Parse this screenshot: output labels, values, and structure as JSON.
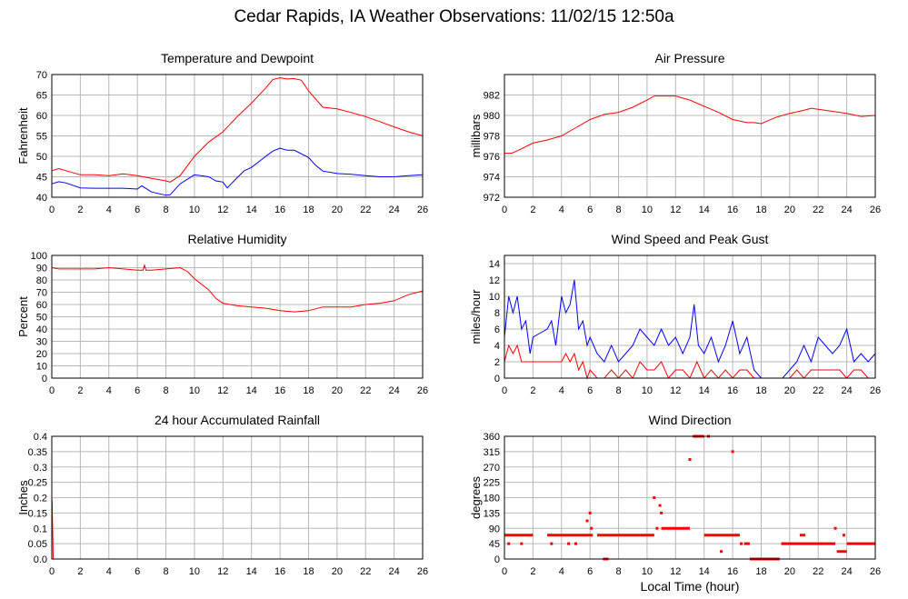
{
  "title": "Cedar Rapids, IA Weather Observations: 11/02/15 12:50a",
  "colors": {
    "red": "#ff0000",
    "blue": "#0000ff",
    "grid": "#b8b8b8"
  },
  "chart_data": [
    {
      "id": "temp",
      "type": "line",
      "title": "Temperature and Dewpoint",
      "ylabel": "Fahrenheit",
      "xlabel": "",
      "xlim": [
        0,
        26
      ],
      "ylim": [
        40,
        70
      ],
      "xticks": [
        0,
        2,
        4,
        6,
        8,
        10,
        12,
        14,
        16,
        18,
        20,
        22,
        24,
        26
      ],
      "yticks": [
        40,
        45,
        50,
        55,
        60,
        65,
        70
      ],
      "grid": true,
      "series": [
        {
          "color": "#ff0000",
          "x": [
            0,
            0.5,
            1,
            2,
            3,
            4,
            5,
            6,
            7,
            8,
            8.3,
            9,
            10,
            11,
            12,
            13,
            14,
            15,
            15.5,
            16,
            16.5,
            17,
            17.5,
            18,
            19,
            20,
            21,
            22,
            23,
            24,
            25,
            26
          ],
          "y": [
            46.5,
            47,
            46.5,
            45.5,
            45.5,
            45.3,
            45.7,
            45.3,
            44.6,
            44,
            43.7,
            45.3,
            50,
            53.5,
            56,
            59.7,
            63,
            66.7,
            68.8,
            69.2,
            68.9,
            69,
            68.6,
            66,
            62,
            61.6,
            60.7,
            59.7,
            58.5,
            57.2,
            56,
            55
          ]
        },
        {
          "color": "#0000ff",
          "x": [
            0,
            0.5,
            1,
            2,
            3,
            4,
            5,
            6,
            6.3,
            7,
            8,
            8.3,
            9,
            10,
            11,
            11.5,
            12,
            12.3,
            13,
            13.5,
            14,
            15,
            15.5,
            16,
            16.5,
            17,
            18,
            18.5,
            19,
            20,
            21,
            22,
            23,
            24,
            25,
            26
          ],
          "y": [
            43.3,
            43.8,
            43.5,
            42.3,
            42.2,
            42.2,
            42.2,
            42,
            42.8,
            41.3,
            40.5,
            40.6,
            43.3,
            45.5,
            45,
            44,
            43.7,
            42.3,
            44.8,
            46.5,
            47.3,
            50,
            51.3,
            52,
            51.5,
            51.5,
            49.7,
            47.8,
            46.4,
            45.8,
            45.6,
            45.3,
            45,
            45,
            45.3,
            45.5
          ]
        }
      ]
    },
    {
      "id": "pressure",
      "type": "line",
      "title": "Air Pressure",
      "ylabel": "millibars",
      "xlabel": "",
      "xlim": [
        0,
        26
      ],
      "ylim": [
        972,
        984
      ],
      "xticks": [
        0,
        2,
        4,
        6,
        8,
        10,
        12,
        14,
        16,
        18,
        20,
        22,
        24,
        26
      ],
      "yticks": [
        972,
        974,
        976,
        978,
        980,
        982
      ],
      "grid": true,
      "series": [
        {
          "color": "#ff0000",
          "x": [
            0,
            0.5,
            1,
            2,
            3,
            4,
            5,
            6,
            7,
            8,
            9,
            10,
            10.5,
            11,
            12,
            13,
            14,
            15,
            16,
            17,
            17.5,
            18,
            19,
            20,
            21,
            21.5,
            22,
            23,
            24,
            25,
            26
          ],
          "y": [
            976.3,
            976.3,
            976.6,
            977.3,
            977.6,
            978,
            978.8,
            979.6,
            980.1,
            980.3,
            980.8,
            981.5,
            981.9,
            981.9,
            981.9,
            981.5,
            980.9,
            980.3,
            979.6,
            979.3,
            979.3,
            979.2,
            979.8,
            980.2,
            980.5,
            980.7,
            980.6,
            980.4,
            980.2,
            979.9,
            980
          ]
        }
      ]
    },
    {
      "id": "humidity",
      "type": "line",
      "title": "Relative Humidity",
      "ylabel": "Percent",
      "xlabel": "",
      "xlim": [
        0,
        26
      ],
      "ylim": [
        0,
        100
      ],
      "xticks": [
        0,
        2,
        4,
        6,
        8,
        10,
        12,
        14,
        16,
        18,
        20,
        22,
        24,
        26
      ],
      "yticks": [
        0,
        10,
        20,
        30,
        40,
        50,
        60,
        70,
        80,
        90,
        100
      ],
      "grid": true,
      "series": [
        {
          "color": "#ff0000",
          "x": [
            0,
            0.5,
            1,
            2,
            3,
            4,
            5,
            6,
            6.4,
            6.5,
            6.6,
            7,
            8,
            9,
            9.5,
            10,
            11,
            11.5,
            12,
            13,
            14,
            15,
            16,
            17,
            18,
            19,
            20,
            21,
            22,
            23,
            24,
            25,
            26
          ],
          "y": [
            90,
            89,
            89,
            89,
            89,
            90,
            89,
            88,
            88,
            92,
            88,
            88,
            89,
            90,
            87,
            81,
            72,
            65,
            61,
            59,
            58,
            57,
            55,
            54,
            55,
            58,
            58,
            58,
            60,
            61,
            63,
            68,
            71
          ]
        }
      ]
    },
    {
      "id": "wind",
      "type": "line",
      "title": "Wind Speed and Peak Gust",
      "ylabel": "miles/hour",
      "xlabel": "",
      "xlim": [
        0,
        26
      ],
      "ylim": [
        0,
        15
      ],
      "xticks": [
        0,
        2,
        4,
        6,
        8,
        10,
        12,
        14,
        16,
        18,
        20,
        22,
        24,
        26
      ],
      "yticks": [
        0,
        2,
        4,
        6,
        8,
        10,
        12,
        14
      ],
      "grid": true,
      "series": [
        {
          "color": "#0000ff",
          "x": [
            0,
            0.3,
            0.6,
            0.9,
            1.2,
            1.5,
            1.8,
            2,
            2.5,
            3,
            3.3,
            3.6,
            4,
            4.3,
            4.6,
            4.9,
            5.2,
            5.5,
            5.8,
            6,
            6.5,
            7,
            7.5,
            8,
            8.5,
            9,
            9.5,
            10,
            10.5,
            11,
            11.5,
            12,
            12.5,
            13,
            13.3,
            13.6,
            14,
            14.5,
            15,
            15.5,
            16,
            16.5,
            17,
            17.5,
            18,
            18.5,
            19,
            19.5,
            20,
            20.5,
            21,
            21.5,
            22,
            22.5,
            23,
            23.5,
            24,
            24.5,
            25,
            25.5,
            26
          ],
          "y": [
            5,
            10,
            8,
            10,
            6,
            7,
            3,
            5,
            5.5,
            6,
            7,
            4,
            10,
            8,
            9,
            12,
            6,
            7,
            4,
            5,
            3,
            2,
            4,
            2,
            3,
            4,
            6,
            5,
            4,
            6,
            4,
            5,
            3,
            5,
            9,
            4,
            3,
            5,
            2,
            4,
            7,
            3,
            5,
            1,
            0,
            0,
            0,
            0,
            1,
            2,
            4,
            2,
            5,
            4,
            3,
            4,
            6,
            2,
            3,
            2,
            3
          ]
        },
        {
          "color": "#ff0000",
          "x": [
            0,
            0.3,
            0.6,
            0.9,
            1.2,
            1.5,
            2,
            2.5,
            3,
            3.5,
            4,
            4.3,
            4.6,
            4.9,
            5.2,
            5.5,
            5.8,
            6,
            6.5,
            7,
            7.5,
            8,
            8.5,
            9,
            9.5,
            10,
            10.5,
            11,
            11.5,
            12,
            12.5,
            13,
            13.5,
            14,
            14.5,
            15,
            15.5,
            16,
            16.5,
            17,
            17.5,
            18,
            18.5,
            19,
            19.5,
            20,
            20.5,
            21,
            21.5,
            22,
            22.5,
            23,
            23.5,
            24,
            24.5,
            25,
            25.5,
            26
          ],
          "y": [
            2,
            4,
            3,
            4,
            2,
            2,
            2,
            2,
            2,
            2,
            2,
            3,
            2,
            3,
            1,
            2,
            0,
            1,
            0,
            0,
            1,
            0,
            1,
            0,
            2,
            1,
            1,
            2,
            0,
            1,
            1,
            0,
            2,
            0,
            1,
            0,
            1,
            0,
            1,
            1,
            0,
            0,
            0,
            0,
            0,
            0,
            1,
            0,
            1,
            1,
            1,
            1,
            1,
            0,
            1,
            1,
            0,
            0
          ]
        }
      ]
    },
    {
      "id": "rain",
      "type": "line",
      "title": "24 hour Accumulated Rainfall",
      "ylabel": "Inches",
      "xlabel": "",
      "xlim": [
        0,
        26
      ],
      "ylim": [
        0,
        0.4
      ],
      "xticks": [
        0,
        2,
        4,
        6,
        8,
        10,
        12,
        14,
        16,
        18,
        20,
        22,
        24,
        26
      ],
      "yticks": [
        "0.0",
        "0.05",
        "0.1",
        "0.15",
        "0.2",
        "0.25",
        "0.3",
        "0.35",
        "0.4"
      ],
      "ytick_values": [
        0,
        0.05,
        0.1,
        0.15,
        0.2,
        0.25,
        0.3,
        0.35,
        0.4
      ],
      "grid": true,
      "series": [
        {
          "color": "#ff0000",
          "x": [
            0,
            0.02,
            0.1,
            26
          ],
          "y": [
            0.19,
            0.19,
            0,
            0
          ]
        }
      ]
    },
    {
      "id": "direction",
      "type": "scatter",
      "title": "Wind Direction",
      "ylabel": "degrees",
      "xlabel": "Local Time (hour)",
      "xlim": [
        0,
        26
      ],
      "ylim": [
        0,
        360
      ],
      "xticks": [
        0,
        2,
        4,
        6,
        8,
        10,
        12,
        14,
        16,
        18,
        20,
        22,
        24,
        26
      ],
      "yticks": [
        0,
        45,
        90,
        135,
        180,
        225,
        270,
        315,
        360
      ],
      "grid": true,
      "series": [
        {
          "color": "#ff0000",
          "segments": [
            [
              0,
              2,
              70
            ],
            [
              3,
              6.2,
              70
            ],
            [
              6.5,
              8,
              70
            ],
            [
              8,
              10.5,
              70
            ],
            [
              11,
              13,
              90
            ],
            [
              13.2,
              14,
              360
            ],
            [
              14,
              16.5,
              70
            ],
            [
              16.8,
              17.2,
              45
            ],
            [
              17.2,
              19.3,
              0
            ],
            [
              19.5,
              22.5,
              45
            ],
            [
              22.5,
              23.2,
              45
            ],
            [
              23.3,
              24,
              22
            ],
            [
              24,
              26,
              45
            ]
          ],
          "x": [
            0.3,
            1.2,
            3.3,
            4.5,
            5,
            5.8,
            6,
            6.1,
            7,
            7.2,
            10.5,
            10.7,
            10.9,
            11,
            13,
            14.3,
            15.2,
            16,
            16.6,
            18.1,
            19.5,
            20.8,
            21,
            23.2,
            23.8
          ],
          "y": [
            45,
            45,
            45,
            45,
            45,
            112,
            135,
            90,
            0,
            0,
            180,
            90,
            157,
            135,
            292,
            360,
            22,
            315,
            45,
            0,
            45,
            70,
            70,
            90,
            70
          ]
        }
      ]
    }
  ]
}
